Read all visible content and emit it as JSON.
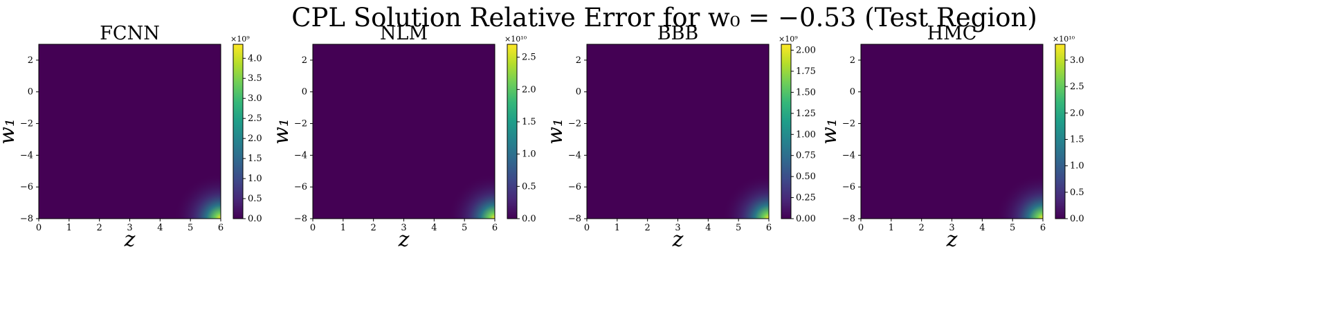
{
  "figure": {
    "title": "CPL Solution Relative Error for w₀ = −0.53 (Test Region)"
  },
  "colors": {
    "viridis": [
      "#440154",
      "#482878",
      "#3e4989",
      "#31688e",
      "#26828e",
      "#1f9e89",
      "#35b779",
      "#6ece58",
      "#b5de2b",
      "#fde725"
    ],
    "background": "#440154"
  },
  "chart_data": [
    {
      "type": "heatmap",
      "title": "FCNN",
      "xlabel": "z",
      "ylabel": "w₁",
      "xlim": [
        0,
        6
      ],
      "ylim": [
        -8,
        3
      ],
      "x_ticks": [
        "0",
        "1",
        "2",
        "3",
        "4",
        "5",
        "6"
      ],
      "y_ticks": [
        "−8",
        "−6",
        "−4",
        "−2",
        "0",
        "2"
      ],
      "colorbar": {
        "range": [
          0,
          4.35
        ],
        "multiplier": "×10⁹",
        "ticks": [
          "0.0",
          "0.5",
          "1.0",
          "1.5",
          "2.0",
          "2.5",
          "3.0",
          "3.5",
          "4.0"
        ]
      }
    },
    {
      "type": "heatmap",
      "title": "NLM",
      "xlabel": "z",
      "ylabel": "w₁",
      "xlim": [
        0,
        6
      ],
      "ylim": [
        -8,
        3
      ],
      "x_ticks": [
        "0",
        "1",
        "2",
        "3",
        "4",
        "5",
        "6"
      ],
      "y_ticks": [
        "−8",
        "−6",
        "−4",
        "−2",
        "0",
        "2"
      ],
      "colorbar": {
        "range": [
          0,
          2.7
        ],
        "multiplier": "×10¹⁰",
        "ticks": [
          "0.0",
          "0.5",
          "1.0",
          "1.5",
          "2.0",
          "2.5"
        ]
      }
    },
    {
      "type": "heatmap",
      "title": "BBB",
      "xlabel": "z",
      "ylabel": "w₁",
      "xlim": [
        0,
        6
      ],
      "ylim": [
        -8,
        3
      ],
      "x_ticks": [
        "0",
        "1",
        "2",
        "3",
        "4",
        "5",
        "6"
      ],
      "y_ticks": [
        "−8",
        "−6",
        "−4",
        "−2",
        "0",
        "2"
      ],
      "colorbar": {
        "range": [
          0,
          2.07
        ],
        "multiplier": "×10⁹",
        "ticks": [
          "0.00",
          "0.25",
          "0.50",
          "0.75",
          "1.00",
          "1.25",
          "1.50",
          "1.75",
          "2.00"
        ]
      }
    },
    {
      "type": "heatmap",
      "title": "HMC",
      "xlabel": "z",
      "ylabel": "w₁",
      "xlim": [
        0,
        6
      ],
      "ylim": [
        -8,
        3
      ],
      "x_ticks": [
        "0",
        "1",
        "2",
        "3",
        "4",
        "5",
        "6"
      ],
      "y_ticks": [
        "−8",
        "−6",
        "−4",
        "−2",
        "0",
        "2"
      ],
      "colorbar": {
        "range": [
          0,
          3.3
        ],
        "multiplier": "×10¹⁰",
        "ticks": [
          "0.0",
          "0.5",
          "1.0",
          "1.5",
          "2.0",
          "2.5",
          "3.0"
        ]
      }
    }
  ]
}
